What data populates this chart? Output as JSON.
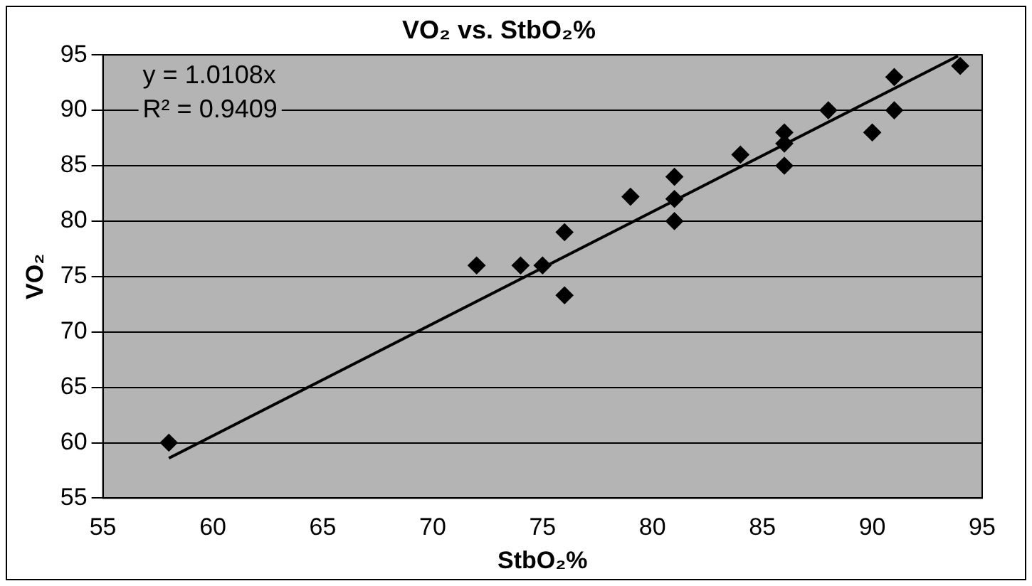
{
  "chart_data": {
    "type": "scatter",
    "title": "VO₂ vs. StbO₂%",
    "xlabel": "StbO₂%",
    "ylabel": "VO₂",
    "annotations": [
      "y = 1.0108x",
      "R² = 0.9409"
    ],
    "series": [
      {
        "color": "#000000",
        "marker": "diamond",
        "x": [
          58,
          72,
          74,
          75,
          76,
          76,
          79,
          81,
          81,
          81,
          84,
          86,
          86,
          86,
          88,
          90,
          91,
          91,
          94
        ],
        "values": [
          60,
          76,
          76,
          76,
          79,
          73.3,
          82.2,
          84,
          82,
          80,
          86,
          88,
          87,
          85,
          90,
          88,
          93,
          90,
          94
        ]
      },
      {
        "type": "line",
        "color": "#000000",
        "marker": "none",
        "line_style": "solid",
        "x": [
          58,
          93.9
        ],
        "values": [
          58.6,
          94.9
        ]
      }
    ],
    "xlim": [
      55,
      95
    ],
    "xticks": [
      55,
      60,
      65,
      70,
      75,
      80,
      85,
      90,
      95
    ],
    "ylim": [
      55,
      95
    ],
    "yticks": [
      55,
      60,
      65,
      70,
      75,
      80,
      85,
      90,
      95
    ],
    "grid": "y",
    "legend": false
  }
}
